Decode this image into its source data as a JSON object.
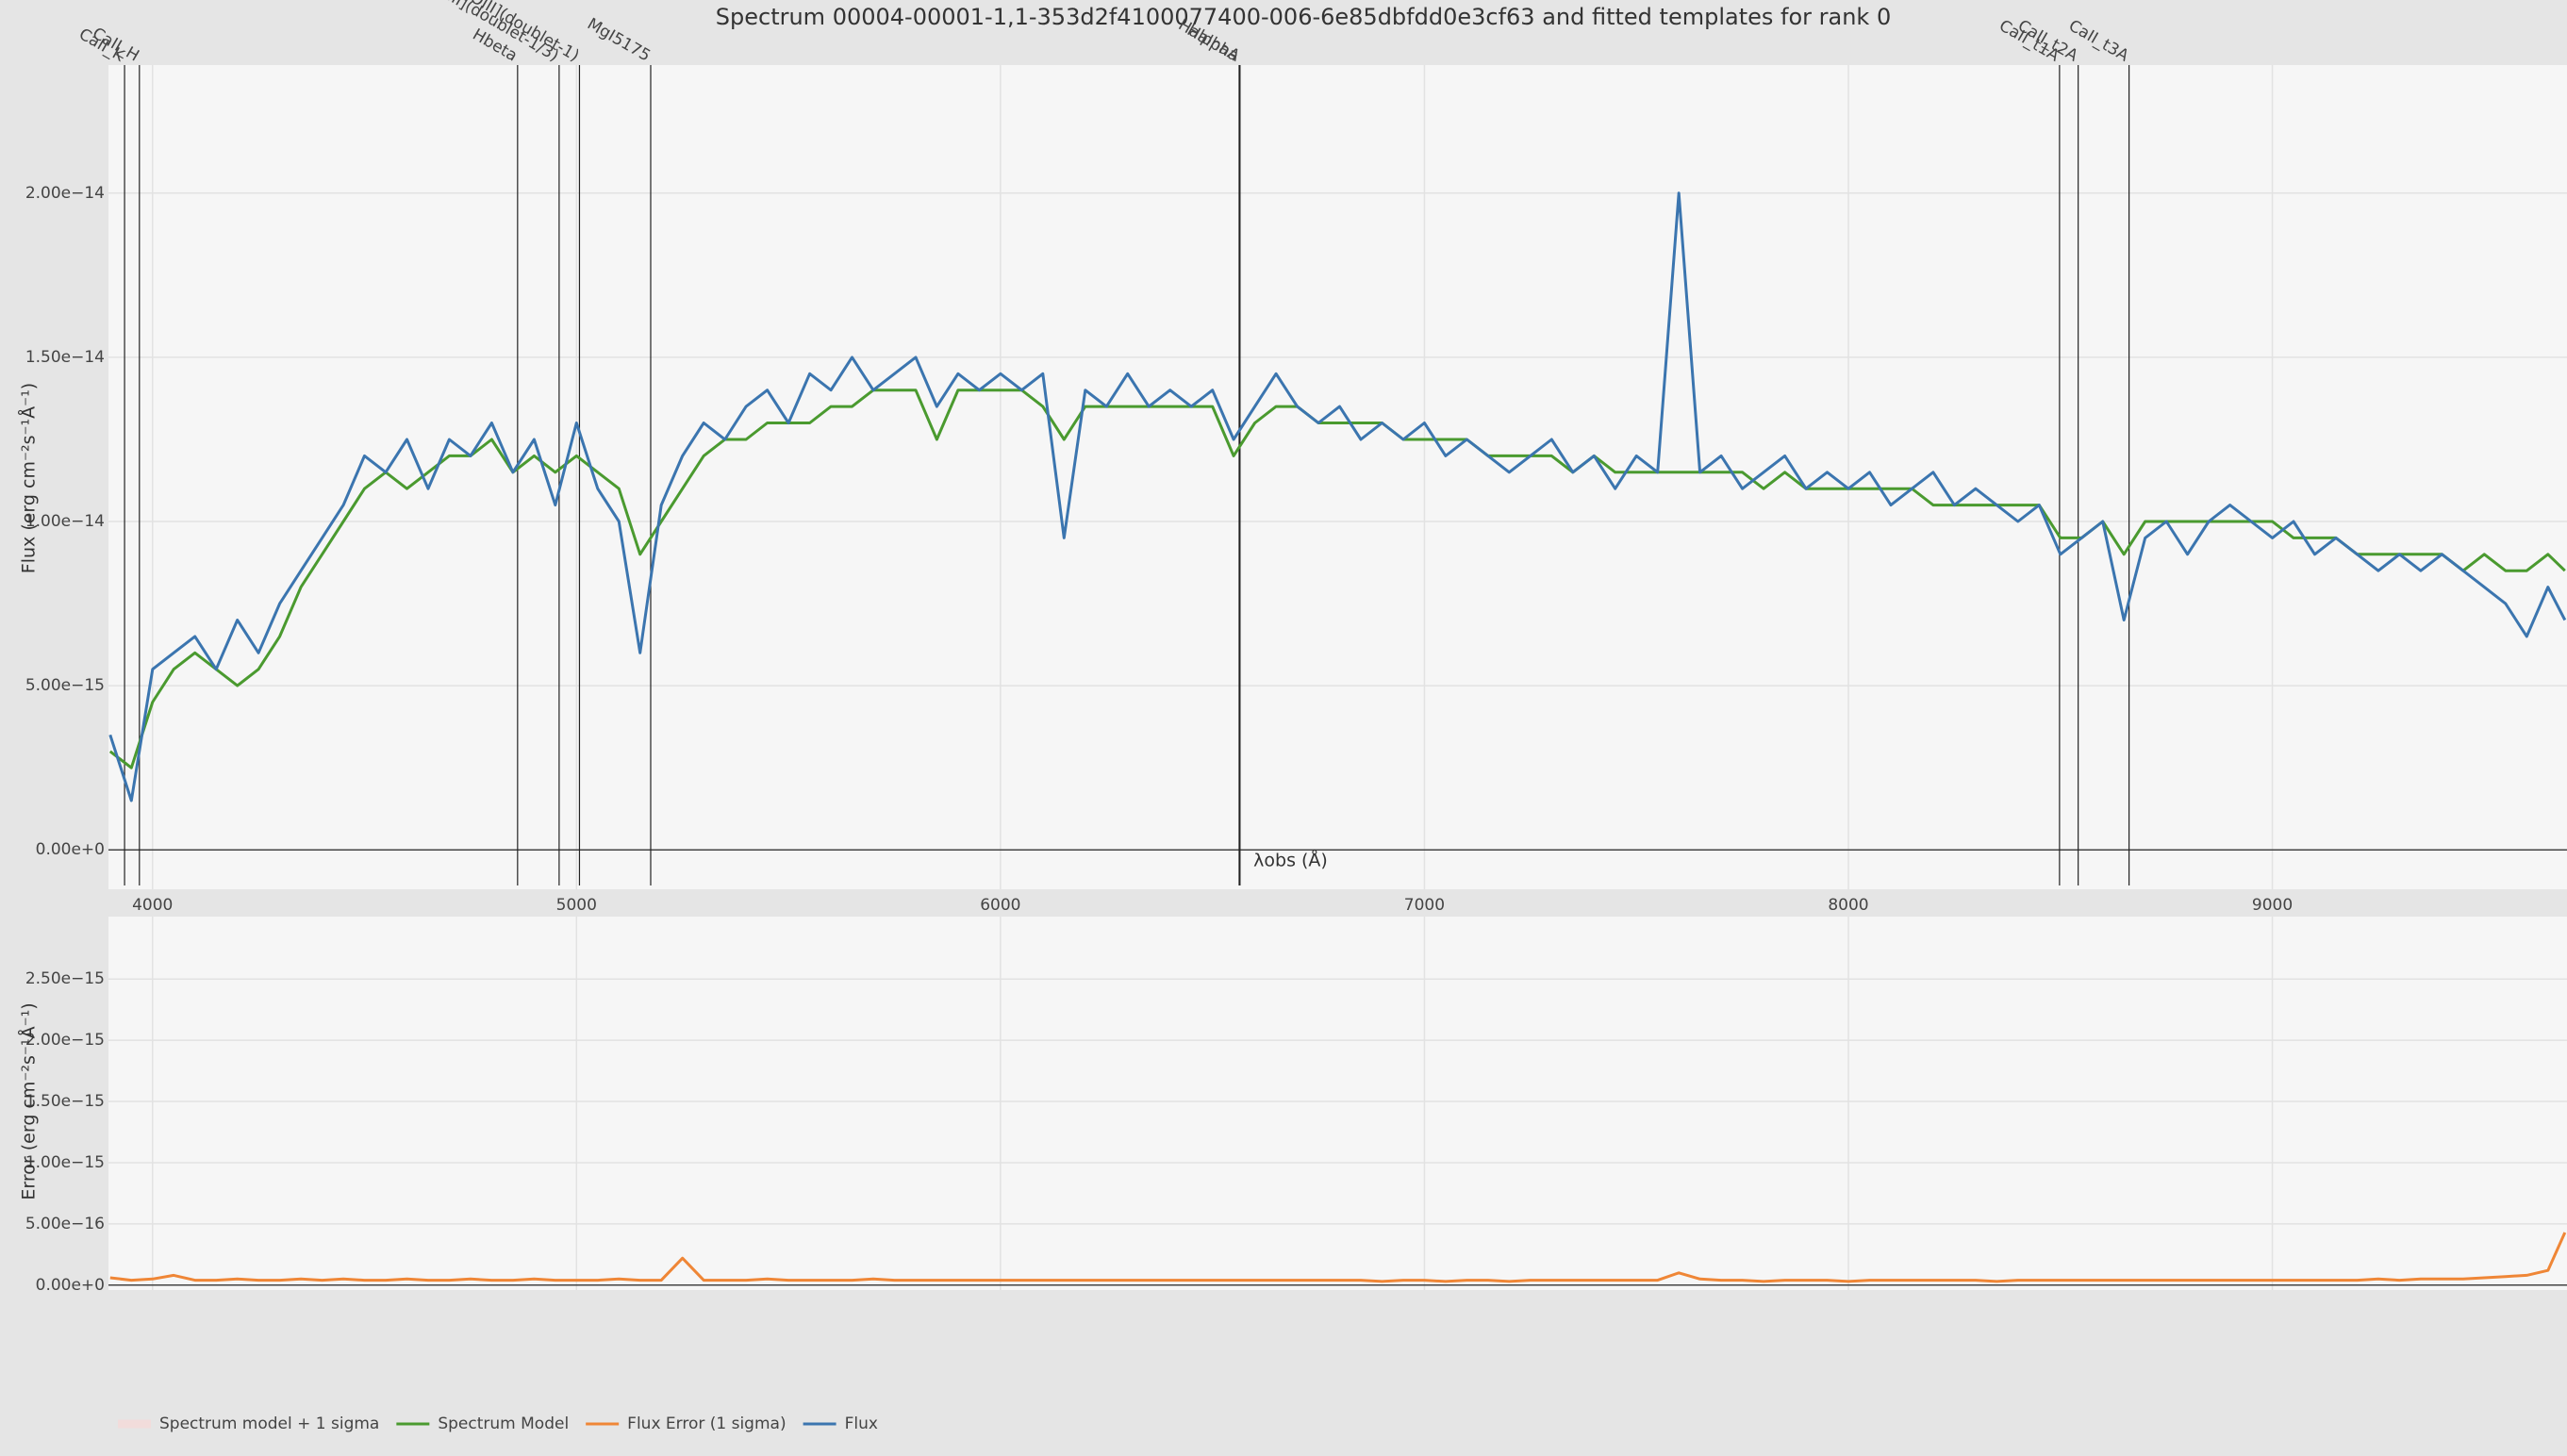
{
  "chart_data": [
    {
      "type": "line",
      "title": "Spectrum 00004-00001-1,1-353d2f4100077400-006-6e85dbfdd0e3cf63 and fitted templates for rank 0",
      "x_label": "λobs (Å)",
      "y_label": "Flux (erg cm⁻²s⁻¹Å⁻¹)",
      "x": [
        3900,
        3950,
        4000,
        4050,
        4100,
        4150,
        4200,
        4250,
        4300,
        4350,
        4400,
        4450,
        4500,
        4550,
        4600,
        4650,
        4700,
        4750,
        4800,
        4850,
        4900,
        4950,
        5000,
        5050,
        5100,
        5150,
        5200,
        5250,
        5300,
        5350,
        5400,
        5450,
        5500,
        5550,
        5600,
        5650,
        5700,
        5750,
        5800,
        5850,
        5900,
        5950,
        6000,
        6050,
        6100,
        6150,
        6200,
        6250,
        6300,
        6350,
        6400,
        6450,
        6500,
        6550,
        6600,
        6650,
        6700,
        6750,
        6800,
        6850,
        6900,
        6950,
        7000,
        7050,
        7100,
        7150,
        7200,
        7250,
        7300,
        7350,
        7400,
        7450,
        7500,
        7550,
        7600,
        7650,
        7700,
        7750,
        7800,
        7850,
        7900,
        7950,
        8000,
        8050,
        8100,
        8150,
        8200,
        8250,
        8300,
        8350,
        8400,
        8450,
        8500,
        8550,
        8600,
        8650,
        8700,
        8750,
        8800,
        8850,
        8900,
        8950,
        9000,
        9050,
        9100,
        9150,
        9200,
        9250,
        9300,
        9350,
        9400,
        9450,
        9500,
        9550,
        9600,
        9650,
        9690
      ],
      "xlim": [
        3896,
        9695
      ],
      "xticks": [
        4000,
        5000,
        6000,
        7000,
        8000,
        9000
      ],
      "ylim": [
        -1.2e-15,
        2.39e-14
      ],
      "yticks": [
        {
          "value": 0,
          "label": "0.00e+0"
        },
        {
          "value": 5e-15,
          "label": "5.00e−15"
        },
        {
          "value": 1e-14,
          "label": "1.00e−14"
        },
        {
          "value": 1.5e-14,
          "label": "1.50e−14"
        },
        {
          "value": 2e-14,
          "label": "2.00e−14"
        }
      ],
      "grid": true,
      "series": [
        {
          "name": "Spectrum model + 1 sigma",
          "color": "#f2dcdb"
        },
        {
          "name": "Spectrum Model",
          "color": "#4a9a2f",
          "values": [
            3e-15,
            2.5e-15,
            4.5e-15,
            5.5e-15,
            6e-15,
            5.5e-15,
            5e-15,
            5.5e-15,
            6.5e-15,
            8e-15,
            9e-15,
            1e-14,
            1.1e-14,
            1.15e-14,
            1.1e-14,
            1.15e-14,
            1.2e-14,
            1.2e-14,
            1.25e-14,
            1.15e-14,
            1.2e-14,
            1.15e-14,
            1.2e-14,
            1.15e-14,
            1.1e-14,
            9e-15,
            1e-14,
            1.1e-14,
            1.2e-14,
            1.25e-14,
            1.25e-14,
            1.3e-14,
            1.3e-14,
            1.3e-14,
            1.35e-14,
            1.35e-14,
            1.4e-14,
            1.4e-14,
            1.4e-14,
            1.25e-14,
            1.4e-14,
            1.4e-14,
            1.4e-14,
            1.4e-14,
            1.35e-14,
            1.25e-14,
            1.35e-14,
            1.35e-14,
            1.35e-14,
            1.35e-14,
            1.35e-14,
            1.35e-14,
            1.35e-14,
            1.2e-14,
            1.3e-14,
            1.35e-14,
            1.35e-14,
            1.3e-14,
            1.3e-14,
            1.3e-14,
            1.3e-14,
            1.25e-14,
            1.25e-14,
            1.25e-14,
            1.25e-14,
            1.2e-14,
            1.2e-14,
            1.2e-14,
            1.2e-14,
            1.15e-14,
            1.2e-14,
            1.15e-14,
            1.15e-14,
            1.15e-14,
            1.15e-14,
            1.15e-14,
            1.15e-14,
            1.15e-14,
            1.1e-14,
            1.15e-14,
            1.1e-14,
            1.1e-14,
            1.1e-14,
            1.1e-14,
            1.1e-14,
            1.1e-14,
            1.05e-14,
            1.05e-14,
            1.05e-14,
            1.05e-14,
            1.05e-14,
            1.05e-14,
            9.5e-15,
            9.5e-15,
            1e-14,
            9e-15,
            1e-14,
            1e-14,
            1e-14,
            1e-14,
            1e-14,
            1e-14,
            1e-14,
            9.5e-15,
            9.5e-15,
            9.5e-15,
            9e-15,
            9e-15,
            9e-15,
            9e-15,
            9e-15,
            8.5e-15,
            9e-15,
            8.5e-15,
            8.5e-15,
            9e-15,
            8.5e-15
          ]
        },
        {
          "name": "Flux",
          "color": "#3b75af",
          "values": [
            3.5e-15,
            1.5e-15,
            5.5e-15,
            6e-15,
            6.5e-15,
            5.5e-15,
            7e-15,
            6e-15,
            7.5e-15,
            8.5e-15,
            9.5e-15,
            1.05e-14,
            1.2e-14,
            1.15e-14,
            1.25e-14,
            1.1e-14,
            1.25e-14,
            1.2e-14,
            1.3e-14,
            1.15e-14,
            1.25e-14,
            1.05e-14,
            1.3e-14,
            1.1e-14,
            1e-14,
            6e-15,
            1.05e-14,
            1.2e-14,
            1.3e-14,
            1.25e-14,
            1.35e-14,
            1.4e-14,
            1.3e-14,
            1.45e-14,
            1.4e-14,
            1.5e-14,
            1.4e-14,
            1.45e-14,
            1.5e-14,
            1.35e-14,
            1.45e-14,
            1.4e-14,
            1.45e-14,
            1.4e-14,
            1.45e-14,
            9.5e-15,
            1.4e-14,
            1.35e-14,
            1.45e-14,
            1.35e-14,
            1.4e-14,
            1.35e-14,
            1.4e-14,
            1.25e-14,
            1.35e-14,
            1.45e-14,
            1.35e-14,
            1.3e-14,
            1.35e-14,
            1.25e-14,
            1.3e-14,
            1.25e-14,
            1.3e-14,
            1.2e-14,
            1.25e-14,
            1.2e-14,
            1.15e-14,
            1.2e-14,
            1.25e-14,
            1.15e-14,
            1.2e-14,
            1.1e-14,
            1.2e-14,
            1.15e-14,
            2e-14,
            1.15e-14,
            1.2e-14,
            1.1e-14,
            1.15e-14,
            1.2e-14,
            1.1e-14,
            1.15e-14,
            1.1e-14,
            1.15e-14,
            1.05e-14,
            1.1e-14,
            1.15e-14,
            1.05e-14,
            1.1e-14,
            1.05e-14,
            1e-14,
            1.05e-14,
            9e-15,
            9.5e-15,
            1e-14,
            7e-15,
            9.5e-15,
            1e-14,
            9e-15,
            1e-14,
            1.05e-14,
            1e-14,
            9.5e-15,
            1e-14,
            9e-15,
            9.5e-15,
            9e-15,
            8.5e-15,
            9e-15,
            8.5e-15,
            9e-15,
            8.5e-15,
            8e-15,
            7.5e-15,
            6.5e-15,
            8e-15,
            7e-15
          ]
        }
      ],
      "annotations": [
        {
          "text": "CaII_K",
          "x": 3934
        },
        {
          "text": "CaII_H",
          "x": 3969
        },
        {
          "text": "Hbeta",
          "x": 4861
        },
        {
          "text": "[OIII](doublet-1/3)",
          "x": 4959
        },
        {
          "text": "[OIII](doublet-1)",
          "x": 5007
        },
        {
          "text": "MgI5175",
          "x": 5175
        },
        {
          "text": "Halpha",
          "x": 6563
        },
        {
          "text": "HalphaA",
          "x": 6565
        },
        {
          "text": "CaII_t1A",
          "x": 8498
        },
        {
          "text": "CaII_t2A",
          "x": 8542
        },
        {
          "text": "CaII_t3A",
          "x": 8662
        }
      ]
    },
    {
      "type": "line",
      "y_label": "Error (erg cm⁻²s⁻¹Å⁻¹)",
      "x": [
        3900,
        3950,
        4000,
        4050,
        4100,
        4150,
        4200,
        4250,
        4300,
        4350,
        4400,
        4450,
        4500,
        4550,
        4600,
        4650,
        4700,
        4750,
        4800,
        4850,
        4900,
        4950,
        5000,
        5050,
        5100,
        5150,
        5200,
        5250,
        5300,
        5350,
        5400,
        5450,
        5500,
        5550,
        5600,
        5650,
        5700,
        5750,
        5800,
        5850,
        5900,
        5950,
        6000,
        6050,
        6100,
        6150,
        6200,
        6250,
        6300,
        6350,
        6400,
        6450,
        6500,
        6550,
        6600,
        6650,
        6700,
        6750,
        6800,
        6850,
        6900,
        6950,
        7000,
        7050,
        7100,
        7150,
        7200,
        7250,
        7300,
        7350,
        7400,
        7450,
        7500,
        7550,
        7600,
        7650,
        7700,
        7750,
        7800,
        7850,
        7900,
        7950,
        8000,
        8050,
        8100,
        8150,
        8200,
        8250,
        8300,
        8350,
        8400,
        8450,
        8500,
        8550,
        8600,
        8650,
        8700,
        8750,
        8800,
        8850,
        8900,
        8950,
        9000,
        9050,
        9100,
        9150,
        9200,
        9250,
        9300,
        9350,
        9400,
        9450,
        9500,
        9550,
        9600,
        9650,
        9690
      ],
      "xlim": [
        3896,
        9695
      ],
      "xticks": [
        4000,
        5000,
        6000,
        7000,
        8000,
        9000
      ],
      "ylim": [
        -4e-17,
        3.01e-15
      ],
      "yticks": [
        {
          "value": 0,
          "label": "0.00e+0"
        },
        {
          "value": 5e-16,
          "label": "5.00e−16"
        },
        {
          "value": 1e-15,
          "label": "1.00e−15"
        },
        {
          "value": 1.5e-15,
          "label": "1.50e−15"
        },
        {
          "value": 2e-15,
          "label": "2.00e−15"
        },
        {
          "value": 2.5e-15,
          "label": "2.50e−15"
        }
      ],
      "grid": true,
      "series": [
        {
          "name": "Flux Error (1 sigma)",
          "color": "#ef8636",
          "values": [
            6e-17,
            4e-17,
            5e-17,
            8e-17,
            4e-17,
            4e-17,
            5e-17,
            4e-17,
            4e-17,
            5e-17,
            4e-17,
            5e-17,
            4e-17,
            4e-17,
            5e-17,
            4e-17,
            4e-17,
            5e-17,
            4e-17,
            4e-17,
            5e-17,
            4e-17,
            4e-17,
            4e-17,
            5e-17,
            4e-17,
            4e-17,
            2.2e-16,
            4e-17,
            4e-17,
            4e-17,
            5e-17,
            4e-17,
            4e-17,
            4e-17,
            4e-17,
            5e-17,
            4e-17,
            4e-17,
            4e-17,
            4e-17,
            4e-17,
            4e-17,
            4e-17,
            4e-17,
            4e-17,
            4e-17,
            4e-17,
            4e-17,
            4e-17,
            4e-17,
            4e-17,
            4e-17,
            4e-17,
            4e-17,
            4e-17,
            4e-17,
            4e-17,
            4e-17,
            4e-17,
            3e-17,
            4e-17,
            4e-17,
            3e-17,
            4e-17,
            4e-17,
            3e-17,
            4e-17,
            4e-17,
            4e-17,
            4e-17,
            4e-17,
            4e-17,
            4e-17,
            1e-16,
            5e-17,
            4e-17,
            4e-17,
            3e-17,
            4e-17,
            4e-17,
            4e-17,
            3e-17,
            4e-17,
            4e-17,
            4e-17,
            4e-17,
            4e-17,
            4e-17,
            3e-17,
            4e-17,
            4e-17,
            4e-17,
            4e-17,
            4e-17,
            4e-17,
            4e-17,
            4e-17,
            4e-17,
            4e-17,
            4e-17,
            4e-17,
            4e-17,
            4e-17,
            4e-17,
            4e-17,
            4e-17,
            5e-17,
            4e-17,
            5e-17,
            5e-17,
            5e-17,
            6e-17,
            7e-17,
            8e-17,
            1.2e-16,
            4.3e-16
          ]
        }
      ]
    }
  ]
}
